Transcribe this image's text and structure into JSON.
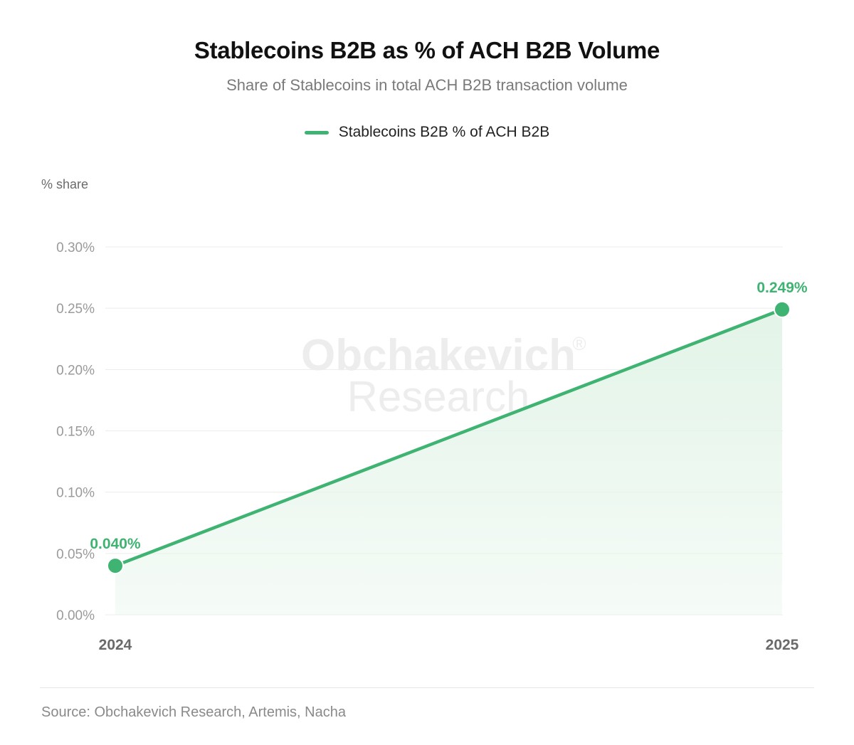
{
  "header": {
    "title": "Stablecoins B2B as % of ACH B2B Volume",
    "subtitle": "Share of Stablecoins in total ACH B2B transaction volume"
  },
  "watermark": {
    "line1": "Obchakevich",
    "mark": "®",
    "line2": "Research"
  },
  "footer": {
    "source": "Source: Obchakevich Research, Artemis, Nacha"
  },
  "chart_data": {
    "type": "line",
    "title": "Stablecoins B2B as % of ACH B2B Volume",
    "subtitle": "Share of Stablecoins in total ACH B2B transaction volume",
    "ylabel": "% share",
    "xlabel": "",
    "x": [
      "2024",
      "2025"
    ],
    "series": [
      {
        "name": "Stablecoins B2B % of ACH B2B",
        "values": [
          0.04,
          0.249
        ],
        "data_labels": [
          "0.040%",
          "0.249%"
        ],
        "color": "#3fb371"
      }
    ],
    "ylim": [
      0,
      0.3
    ],
    "yticks": [
      0.0,
      0.05,
      0.1,
      0.15,
      0.2,
      0.25,
      0.3
    ],
    "ytick_labels": [
      "0.00%",
      "0.05%",
      "0.10%",
      "0.15%",
      "0.20%",
      "0.25%",
      "0.30%"
    ],
    "grid": true,
    "legend": "top-center",
    "area_fill": true
  },
  "colors": {
    "series": "#3fb371",
    "area": "#e3f4e8",
    "grid": "#ececec",
    "tick_text": "#9a9a9a",
    "x_tick_text": "#6a6a6a"
  }
}
